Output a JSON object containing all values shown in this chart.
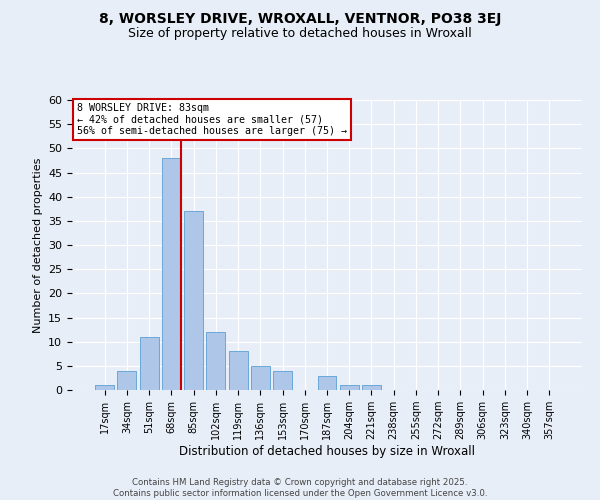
{
  "title1": "8, WORSLEY DRIVE, WROXALL, VENTNOR, PO38 3EJ",
  "title2": "Size of property relative to detached houses in Wroxall",
  "xlabel": "Distribution of detached houses by size in Wroxall",
  "ylabel": "Number of detached properties",
  "bar_color": "#aec6e8",
  "bar_edge_color": "#5a9fd4",
  "categories": [
    "17sqm",
    "34sqm",
    "51sqm",
    "68sqm",
    "85sqm",
    "102sqm",
    "119sqm",
    "136sqm",
    "153sqm",
    "170sqm",
    "187sqm",
    "204sqm",
    "221sqm",
    "238sqm",
    "255sqm",
    "272sqm",
    "289sqm",
    "306sqm",
    "323sqm",
    "340sqm",
    "357sqm"
  ],
  "values": [
    1,
    4,
    11,
    48,
    37,
    12,
    8,
    5,
    4,
    0,
    3,
    1,
    1,
    0,
    0,
    0,
    0,
    0,
    0,
    0,
    0
  ],
  "ylim": [
    0,
    60
  ],
  "yticks": [
    0,
    5,
    10,
    15,
    20,
    25,
    30,
    35,
    40,
    45,
    50,
    55,
    60
  ],
  "property_label": "8 WORSLEY DRIVE: 83sqm",
  "pct_smaller": 42,
  "n_smaller": 57,
  "pct_larger_semi": 56,
  "n_larger_semi": 75,
  "vline_color": "#cc0000",
  "annotation_box_facecolor": "#ffffff",
  "annotation_border_color": "#cc0000",
  "footer": "Contains HM Land Registry data © Crown copyright and database right 2025.\nContains public sector information licensed under the Open Government Licence v3.0.",
  "background_color": "#e8eef7",
  "plot_background_color": "#e8eef7",
  "grid_color": "#ffffff",
  "title1_fontsize": 10,
  "title2_fontsize": 9
}
